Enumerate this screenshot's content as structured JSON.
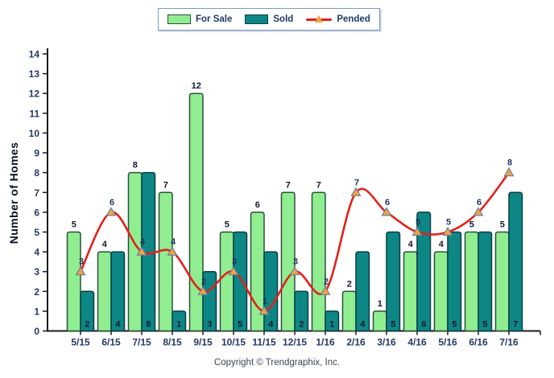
{
  "legend": {
    "items": [
      {
        "label": "For Sale",
        "type": "swatch",
        "color": "#90EE90",
        "border": "#2e4e3e"
      },
      {
        "label": "Sold",
        "type": "swatch",
        "color": "#0d8686",
        "border": "#0a3f42"
      },
      {
        "label": "Pended",
        "type": "line",
        "color": "#e3211c",
        "marker_color": "#f2a33c",
        "marker_border": "#6b7fa3"
      }
    ]
  },
  "footer": {
    "copyright": "Copyright © Trendgraphix, Inc."
  },
  "chart_data": {
    "type": "bar",
    "title": "",
    "xlabel": "",
    "ylabel": "Number of Homes",
    "categories": [
      "5/15",
      "6/15",
      "7/15",
      "8/15",
      "9/15",
      "10/15",
      "11/15",
      "12/15",
      "1/16",
      "2/16",
      "3/16",
      "4/16",
      "5/16",
      "6/16",
      "7/16"
    ],
    "series": [
      {
        "name": "For Sale",
        "type": "bar",
        "color": "#90EE90",
        "border_color": "#2e4e3e",
        "values": [
          5,
          4,
          8,
          7,
          12,
          5,
          6,
          7,
          7,
          2,
          1,
          4,
          4,
          5,
          5
        ]
      },
      {
        "name": "Sold",
        "type": "bar",
        "color": "#0d8686",
        "border_color": "#0a3f42",
        "values": [
          2,
          4,
          8,
          1,
          3,
          5,
          4,
          2,
          1,
          4,
          5,
          6,
          5,
          5,
          7
        ]
      },
      {
        "name": "Pended",
        "type": "line",
        "color": "#e3211c",
        "marker": "triangle",
        "marker_color": "#f2a33c",
        "marker_border_color": "#6b7fa3",
        "values": [
          3,
          6,
          4,
          4,
          2,
          3,
          1,
          3,
          2,
          7,
          6,
          5,
          5,
          6,
          8
        ]
      }
    ],
    "ylim": [
      0,
      14
    ],
    "ytick_step": 1,
    "grid": false,
    "legend_position": "top-center",
    "label_colors": {
      "bar_label": "#131a2a",
      "pended_label": "#22365f",
      "axis_label": "#253a66",
      "axis_line": "#1a1a1a"
    }
  }
}
